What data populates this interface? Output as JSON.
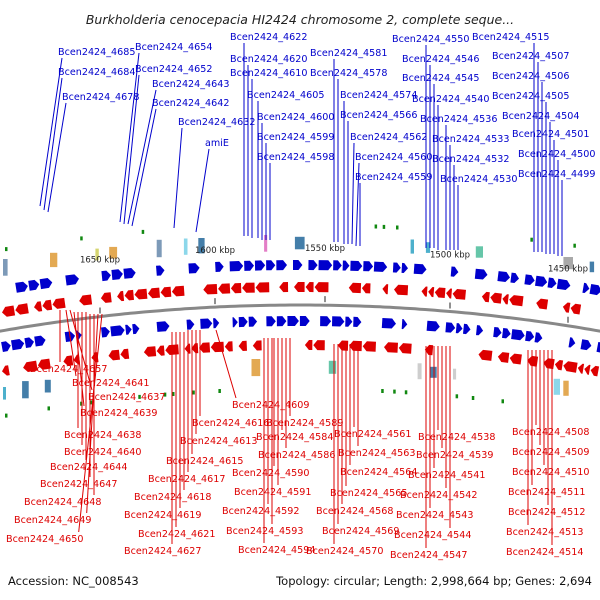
{
  "title": "Burkholderia cenocepacia HI2424 chromosome 2, complete seque...",
  "footer": {
    "accession": "Accession: NC_008543",
    "summary": "Topology: circular; Length: 2,998,664 bp; Genes: 2,694"
  },
  "ticks": [
    "1650 kbp",
    "1600 kbp",
    "1550 kbp",
    "1500 kbp",
    "1450 kbp"
  ],
  "colors": {
    "forward": "#0000cc",
    "reverse": "#dd0000",
    "backbone": "#888888"
  },
  "top_labels": [
    "Bcen2424_4685",
    "Bcen2424_4684",
    "Bcen2424_4678",
    "Bcen2424_4654",
    "Bcen2424_4652",
    "Bcen2424_4643",
    "Bcen2424_4642",
    "Bcen2424_4632",
    "amiE",
    "Bcen2424_4622",
    "Bcen2424_4620",
    "Bcen2424_4610",
    "Bcen2424_4605",
    "Bcen2424_4600",
    "Bcen2424_4599",
    "Bcen2424_4598",
    "Bcen2424_4581",
    "Bcen2424_4578",
    "Bcen2424_4574",
    "Bcen2424_4566",
    "Bcen2424_4562",
    "Bcen2424_4560",
    "Bcen2424_4559",
    "Bcen2424_4550",
    "Bcen2424_4546",
    "Bcen2424_4545",
    "Bcen2424_4540",
    "Bcen2424_4536",
    "Bcen2424_4533",
    "Bcen2424_4532",
    "Bcen2424_4530",
    "Bcen2424_4515",
    "Bcen2424_4507",
    "Bcen2424_4506",
    "Bcen2424_4505",
    "Bcen2424_4504",
    "Bcen2424_4501",
    "Bcen2424_4500",
    "Bcen2424_4499"
  ],
  "bottom_labels": [
    "Bcen2424_4657",
    "Bcen2424_4641",
    "Bcen2424_4637",
    "Bcen2424_4639",
    "Bcen2424_4638",
    "Bcen2424_4640",
    "Bcen2424_4644",
    "Bcen2424_4647",
    "Bcen2424_4648",
    "Bcen2424_4649",
    "Bcen2424_4650",
    "Bcen2424_4609",
    "Bcen2424_4616",
    "Bcen2424_4613",
    "Bcen2424_4615",
    "Bcen2424_4617",
    "Bcen2424_4618",
    "Bcen2424_4619",
    "Bcen2424_4621",
    "Bcen2424_4627",
    "Bcen2424_4589",
    "Bcen2424_4584",
    "Bcen2424_4586",
    "Bcen2424_4590",
    "Bcen2424_4591",
    "Bcen2424_4592",
    "Bcen2424_4593",
    "Bcen2424_4594",
    "Bcen2424_4561",
    "Bcen2424_4563",
    "Bcen2424_4564",
    "Bcen2424_4565",
    "Bcen2424_4568",
    "Bcen2424_4569",
    "Bcen2424_4570",
    "Bcen2424_4538",
    "Bcen2424_4539",
    "Bcen2424_4541",
    "Bcen2424_4542",
    "Bcen2424_4543",
    "Bcen2424_4544",
    "Bcen2424_4547",
    "Bcen2424_4508",
    "Bcen2424_4509",
    "Bcen2424_4510",
    "Bcen2424_4511",
    "Bcen2424_4512",
    "Bcen2424_4513",
    "Bcen2424_4514"
  ]
}
